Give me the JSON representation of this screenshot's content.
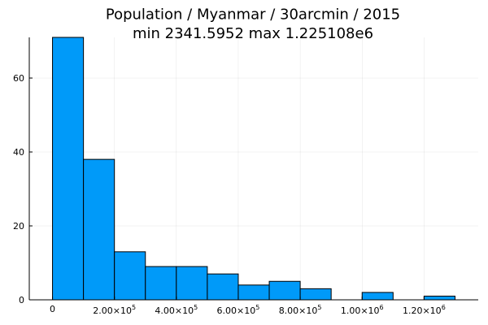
{
  "chart_data": {
    "type": "bar",
    "title": "Population / Myanmar / 30arcmin / 2015",
    "subtitle": "min 2341.5952  max 1.225108e6",
    "xlabel": "",
    "ylabel": "",
    "bin_width": 100000,
    "bins": [
      {
        "start": 0,
        "end": 100000,
        "count": 71
      },
      {
        "start": 100000,
        "end": 200000,
        "count": 38
      },
      {
        "start": 200000,
        "end": 300000,
        "count": 13
      },
      {
        "start": 300000,
        "end": 400000,
        "count": 9
      },
      {
        "start": 400000,
        "end": 500000,
        "count": 9
      },
      {
        "start": 500000,
        "end": 600000,
        "count": 7
      },
      {
        "start": 600000,
        "end": 700000,
        "count": 4
      },
      {
        "start": 700000,
        "end": 800000,
        "count": 5
      },
      {
        "start": 800000,
        "end": 900000,
        "count": 3
      },
      {
        "start": 900000,
        "end": 1000000,
        "count": 0
      },
      {
        "start": 1000000,
        "end": 1100000,
        "count": 2
      },
      {
        "start": 1100000,
        "end": 1200000,
        "count": 0
      },
      {
        "start": 1200000,
        "end": 1300000,
        "count": 1
      }
    ],
    "xlim": [
      -75000,
      1375000
    ],
    "ylim": [
      0,
      71
    ],
    "x_ticks": [
      {
        "value": 0,
        "label": "0",
        "exp": ""
      },
      {
        "value": 200000,
        "label": "2.00×10",
        "exp": "5"
      },
      {
        "value": 400000,
        "label": "4.00×10",
        "exp": "5"
      },
      {
        "value": 600000,
        "label": "6.00×10",
        "exp": "5"
      },
      {
        "value": 800000,
        "label": "8.00×10",
        "exp": "5"
      },
      {
        "value": 1000000,
        "label": "1.00×10",
        "exp": "6"
      },
      {
        "value": 1200000,
        "label": "1.20×10",
        "exp": "6"
      }
    ],
    "y_ticks": [
      {
        "value": 0,
        "label": "0"
      },
      {
        "value": 20,
        "label": "20"
      },
      {
        "value": 40,
        "label": "40"
      },
      {
        "value": 60,
        "label": "60"
      }
    ],
    "grid": true,
    "legend": "none",
    "bar_color": "#009AF9",
    "bar_edge_color": "#000000"
  }
}
